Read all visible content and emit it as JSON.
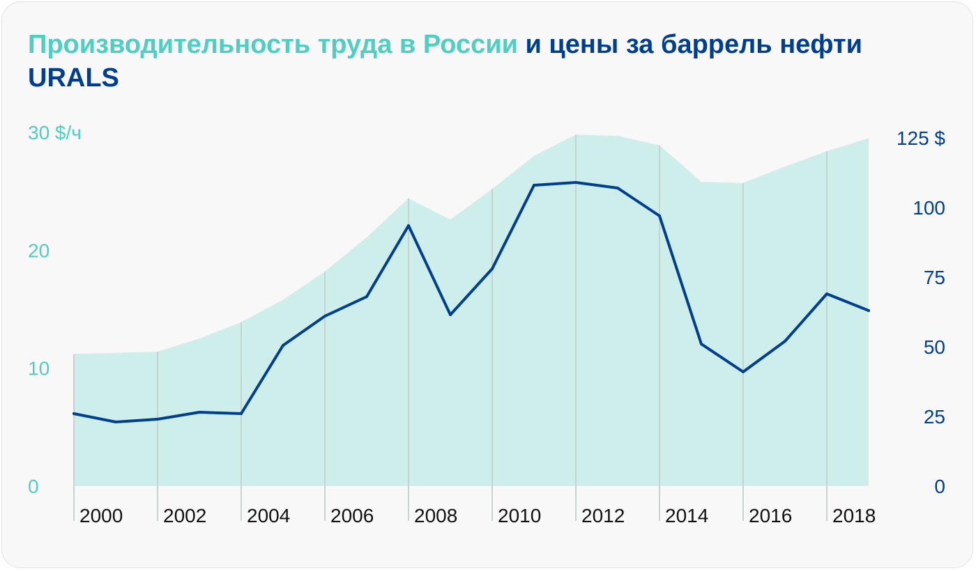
{
  "title": {
    "part1": "Производительность труда в России",
    "part2": "и цены за баррель нефти URALS"
  },
  "colors": {
    "productivity": "#4ecfc2",
    "productivity_fill": "#cdeeea",
    "oil": "#003f8f",
    "gridline": "#c5d3d3"
  },
  "chart_data": {
    "type": "area",
    "x": [
      1999,
      2000,
      2001,
      2002,
      2003,
      2004,
      2005,
      2006,
      2007,
      2008,
      2009,
      2010,
      2011,
      2012,
      2013,
      2014,
      2015,
      2016,
      2017,
      2018
    ],
    "x_tick_labels": [
      "2000",
      "2002",
      "2004",
      "2006",
      "2008",
      "2010",
      "2012",
      "2014",
      "2016",
      "2018"
    ],
    "series": [
      {
        "axis": "left",
        "type": "area",
        "values": [
          11.2,
          11.3,
          11.4,
          12.5,
          13.9,
          15.8,
          18.2,
          21.1,
          24.4,
          22.6,
          25.2,
          28.0,
          29.8,
          29.7,
          28.9,
          25.8,
          25.7,
          27.1,
          28.4,
          29.5
        ]
      },
      {
        "axis": "right",
        "type": "line",
        "values": [
          26,
          23,
          24,
          26.5,
          26,
          50.5,
          61,
          68,
          93.5,
          61.5,
          78,
          108,
          109,
          107,
          97,
          51,
          41,
          52,
          69,
          63
        ]
      }
    ],
    "left_axis": {
      "ticks": [
        "0",
        "10",
        "20",
        "30 $/ч"
      ],
      "ylim": [
        0,
        30
      ]
    },
    "right_axis": {
      "ticks": [
        "0",
        "25",
        "50",
        "75",
        "100",
        "125 $"
      ],
      "ylim": [
        0,
        125
      ]
    },
    "grid": "vertical"
  }
}
